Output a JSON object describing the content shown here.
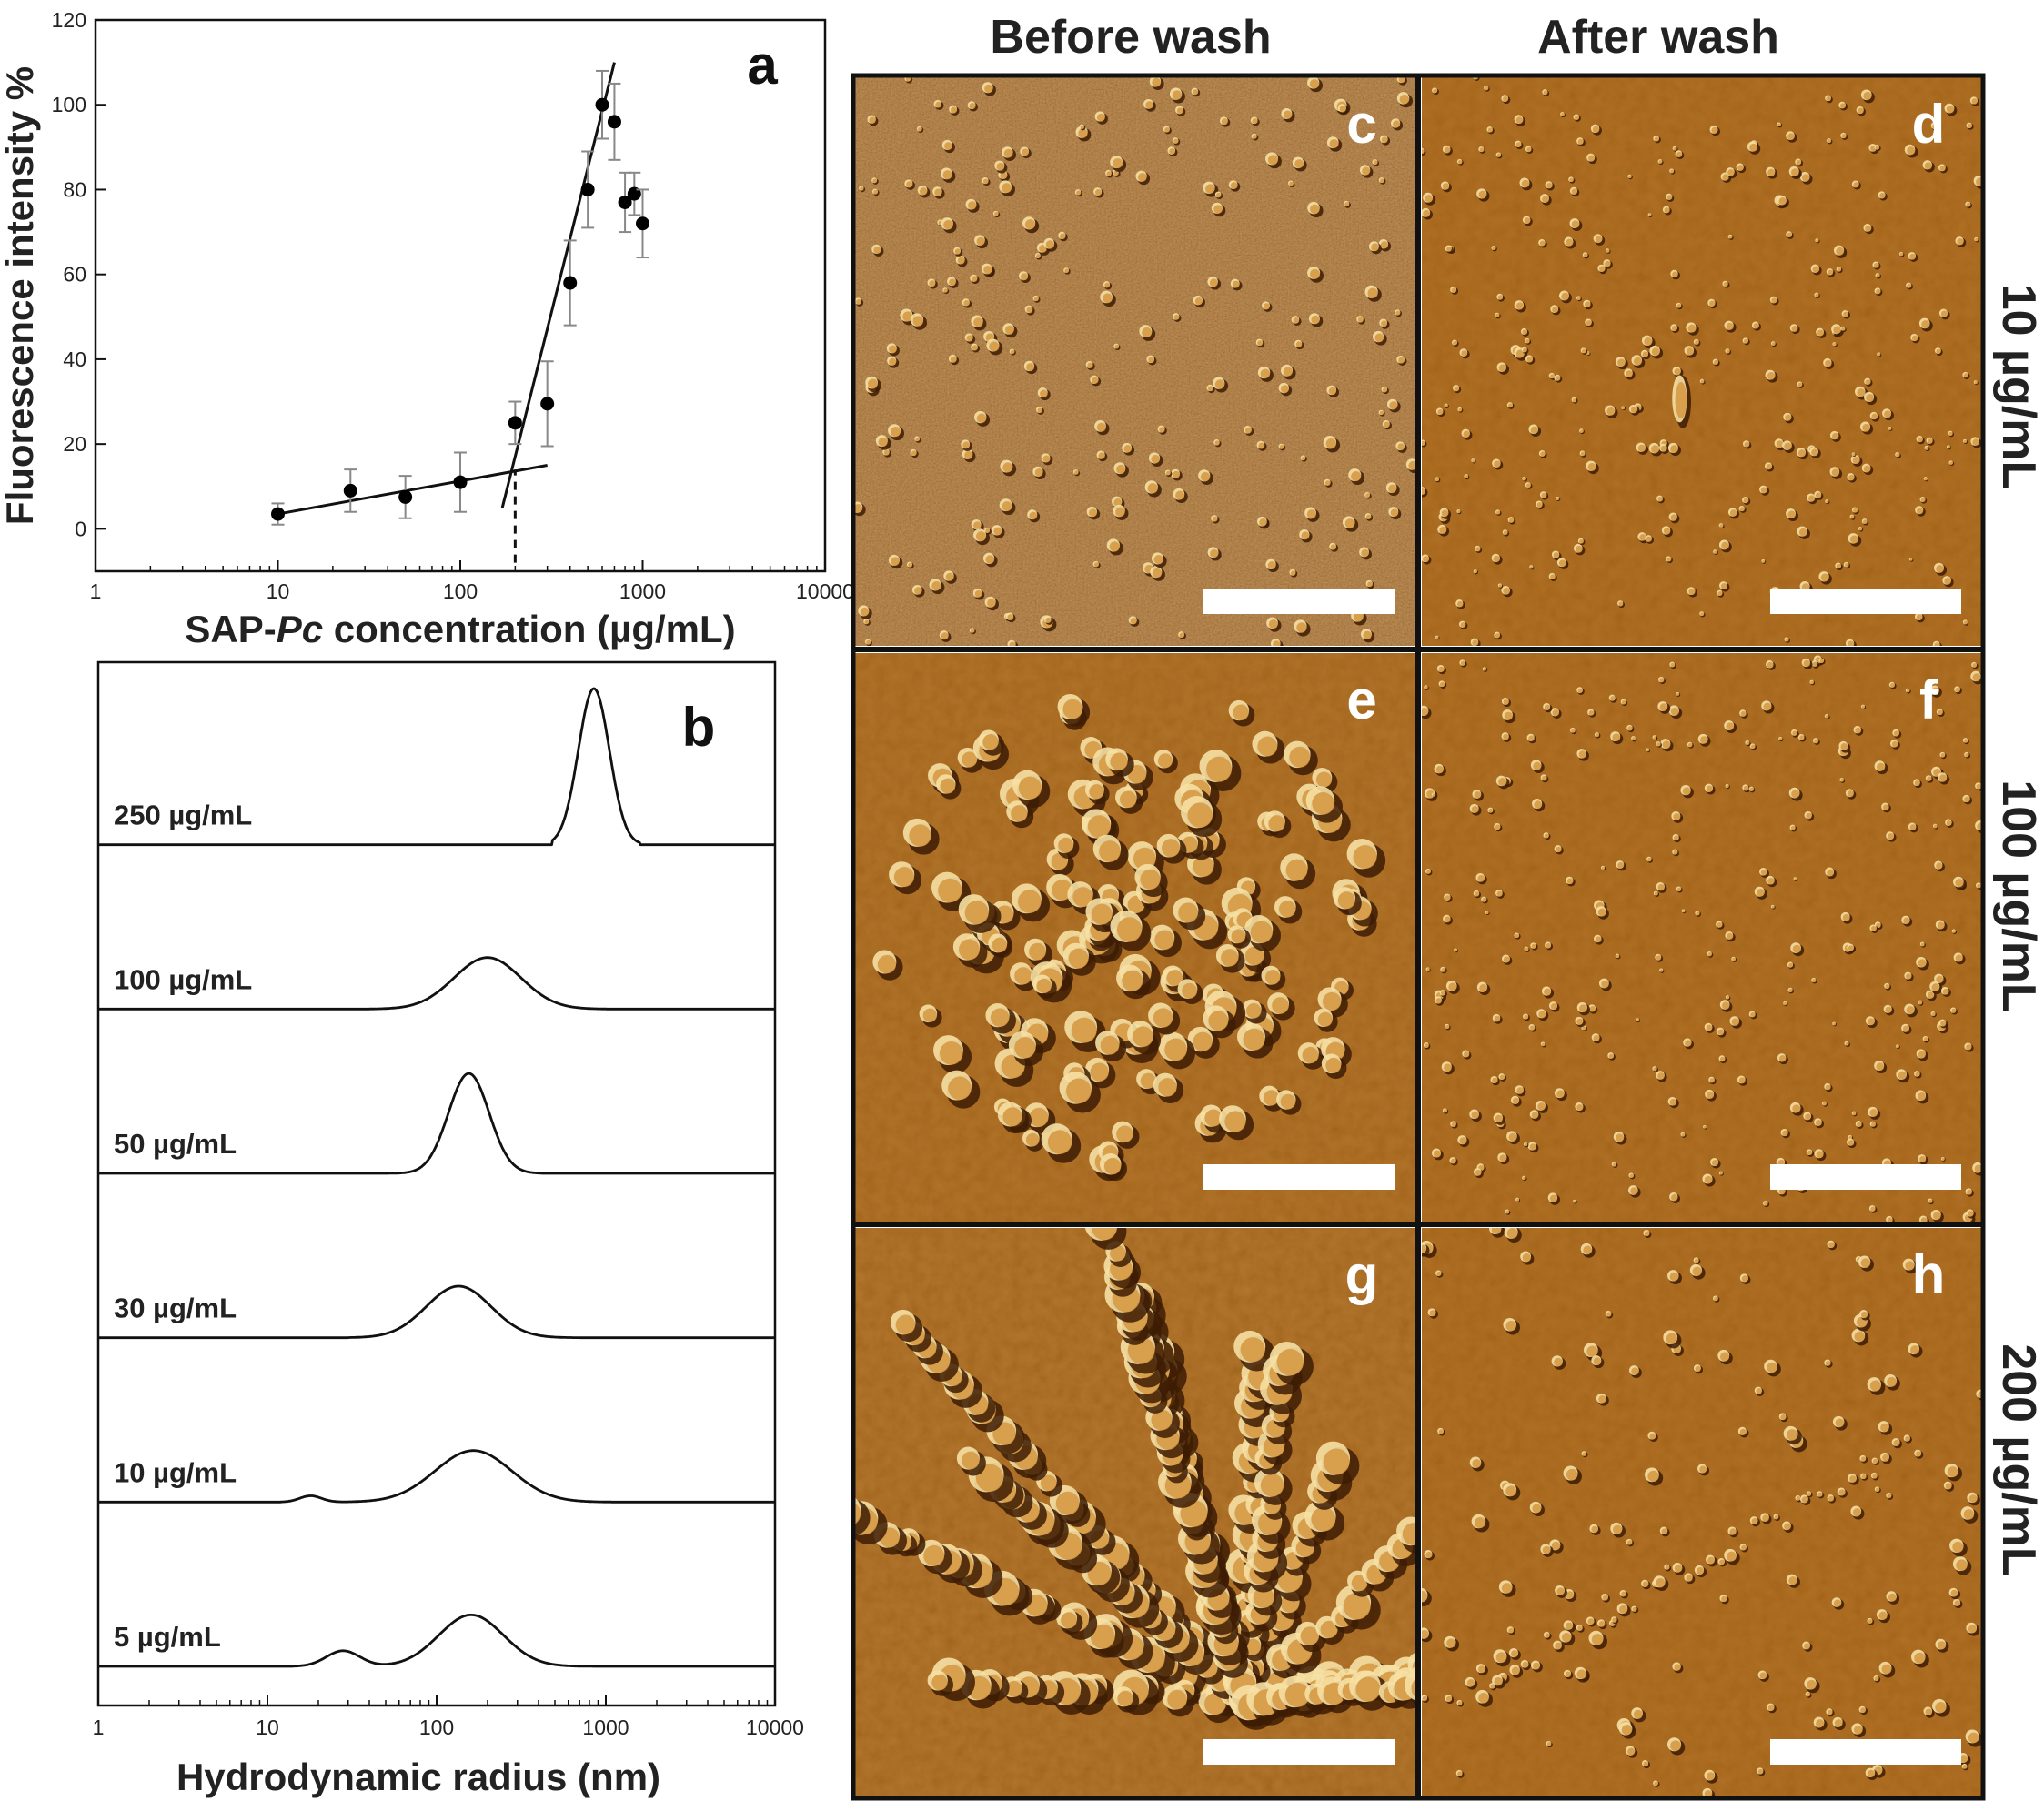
{
  "chart_data": [
    {
      "panel": "a",
      "type": "scatter",
      "xlabel": "SAP-Pc concentration (µg/mL)",
      "xlabel_prefix": "SAP-",
      "xlabel_italic": "Pc",
      "xlabel_suffix": " concentration (µg/mL)",
      "ylabel": "Fluorescence intensity %",
      "x_scale": "log",
      "xlim": [
        1,
        10000
      ],
      "ylim": [
        -10,
        120
      ],
      "x_ticks": [
        1,
        10,
        100,
        1000,
        10000
      ],
      "x_tick_labels": [
        "1",
        "10",
        "100",
        "1000",
        "10000"
      ],
      "y_ticks": [
        0,
        20,
        40,
        60,
        80,
        100,
        120
      ],
      "y_tick_labels": [
        "0",
        "20",
        "40",
        "60",
        "80",
        "100",
        "120"
      ],
      "points": [
        {
          "x": 10,
          "y": 3.5,
          "err": 2.5
        },
        {
          "x": 25,
          "y": 9,
          "err": 5
        },
        {
          "x": 50,
          "y": 7.5,
          "err": 5
        },
        {
          "x": 100,
          "y": 11,
          "err": 7
        },
        {
          "x": 200,
          "y": 25,
          "err": 5
        },
        {
          "x": 300,
          "y": 29.5,
          "err": 10
        },
        {
          "x": 400,
          "y": 58,
          "err": 10
        },
        {
          "x": 500,
          "y": 80,
          "err": 9
        },
        {
          "x": 600,
          "y": 100,
          "err": 8
        },
        {
          "x": 700,
          "y": 96,
          "err": 9
        },
        {
          "x": 800,
          "y": 77,
          "err": 7
        },
        {
          "x": 900,
          "y": 79,
          "err": 5
        },
        {
          "x": 1000,
          "y": 72,
          "err": 8
        }
      ],
      "fit_lines": [
        {
          "x": [
            10,
            300
          ],
          "y": [
            3.5,
            15
          ]
        },
        {
          "x": [
            170,
            700
          ],
          "y": [
            5,
            110
          ]
        }
      ],
      "marker": {
        "x": 200,
        "y_from": -8,
        "y_to": 14
      }
    },
    {
      "panel": "b",
      "type": "line",
      "xlabel": "Hydrodynamic radius (nm)",
      "x_scale": "log",
      "xlim": [
        1,
        10000
      ],
      "x_ticks": [
        1,
        10,
        100,
        1000,
        10000
      ],
      "x_tick_labels": [
        "1",
        "10",
        "100",
        "1000",
        "10000"
      ],
      "series": [
        {
          "name": "250 µg/mL",
          "peaks": [
            {
              "x": 850,
              "h": 1.0,
              "w": 0.13
            }
          ],
          "xmin": 480,
          "xmax": 1600
        },
        {
          "name": "100 µg/mL",
          "peaks": [
            {
              "x": 200,
              "h": 0.33,
              "w": 0.28
            }
          ],
          "xmin": 40,
          "xmax": 1000
        },
        {
          "name": "50 µg/mL",
          "peaks": [
            {
              "x": 155,
              "h": 0.64,
              "w": 0.17
            }
          ],
          "xmin": 50,
          "xmax": 420
        },
        {
          "name": "30 µg/mL",
          "peaks": [
            {
              "x": 135,
              "h": 0.33,
              "w": 0.27
            }
          ],
          "xmin": 30,
          "xmax": 700
        },
        {
          "name": "10 µg/mL",
          "peaks": [
            {
              "x": 165,
              "h": 0.33,
              "w": 0.32
            },
            {
              "x": 18,
              "h": 0.04,
              "w": 0.09
            }
          ],
          "xmin": 12,
          "xmax": 1200
        },
        {
          "name": "5 µg/mL",
          "peaks": [
            {
              "x": 160,
              "h": 0.33,
              "w": 0.27
            },
            {
              "x": 28,
              "h": 0.1,
              "w": 0.14
            }
          ],
          "xmin": 14,
          "xmax": 900
        }
      ]
    }
  ],
  "panel_b_letter": "b",
  "afm": {
    "col_headers": [
      "Before wash",
      "After wash"
    ],
    "row_labels": [
      "10 µg/mL",
      "100 µg/mL",
      "200 µg/mL"
    ],
    "panels": [
      {
        "letter": "c",
        "texture": "fine"
      },
      {
        "letter": "d",
        "texture": "dots"
      },
      {
        "letter": "e",
        "texture": "ring"
      },
      {
        "letter": "f",
        "texture": "dots"
      },
      {
        "letter": "g",
        "texture": "branch"
      },
      {
        "letter": "h",
        "texture": "streak"
      }
    ],
    "colors": {
      "base": "#a8620f",
      "dark": "#3d1c03",
      "light": "#f6e0a4",
      "divider": "#111111",
      "scalebar": "#ffffff"
    }
  }
}
